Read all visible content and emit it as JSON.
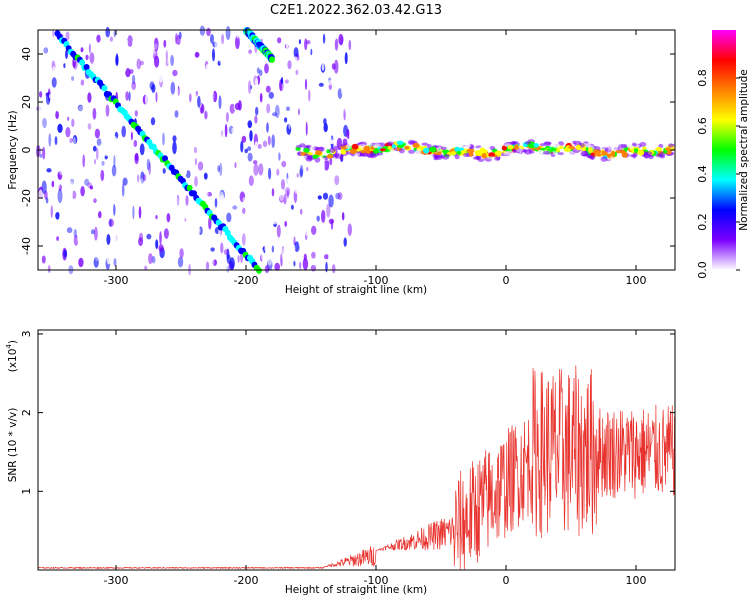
{
  "title": "C2E1.2022.362.03.42.G13",
  "chart_data": [
    {
      "type": "heatmap",
      "xlabel": "Height of straight line (km)",
      "ylabel": "Frequency (Hz)",
      "xlim": [
        -360,
        130
      ],
      "ylim": [
        -50,
        50
      ],
      "xticks": [
        -300,
        -200,
        -100,
        0,
        100
      ],
      "yticks": [
        -40,
        -20,
        0,
        20,
        40
      ],
      "colorbar": {
        "label": "Normalized spectral amplitude",
        "range": [
          0,
          1
        ],
        "ticks": [
          "0.0",
          "0.2",
          "0.4",
          "0.6",
          "0.8"
        ],
        "colors": [
          "#ffffff",
          "#7a00ff",
          "#0000ff",
          "#00ffff",
          "#00ff00",
          "#ffff00",
          "#ff8000",
          "#ff0000",
          "#ff00ff"
        ]
      },
      "features": {
        "diagonal_traces": [
          {
            "x": [
              -345,
              -190
            ],
            "y": [
              48,
              -50
            ]
          },
          {
            "x": [
              -200,
              -180
            ],
            "y": [
              50,
              38
            ]
          }
        ],
        "noisy_region_x": [
          -360,
          -120
        ],
        "zero_line_region_x": [
          -160,
          130
        ],
        "zero_line_y": 0
      },
      "grid": false
    },
    {
      "type": "line",
      "xlabel": "Height of straight line (km)",
      "ylabel": "SNR (10 * v/v)",
      "y_multiplier": "(x10",
      "y_multiplier_exp": "4",
      "xlim": [
        -360,
        130
      ],
      "ylim": [
        0,
        3.05
      ],
      "xticks": [
        -300,
        -200,
        -100,
        0,
        100
      ],
      "yticks": [
        1,
        2,
        3
      ],
      "color": "#e8322d",
      "grid": false
    }
  ]
}
